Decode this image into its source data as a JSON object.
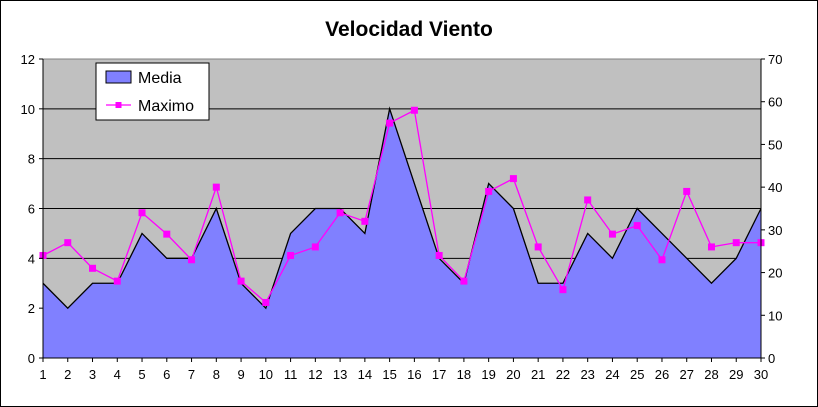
{
  "chart_data": {
    "type": "area",
    "title": "Velocidad Viento",
    "categories": [
      "1",
      "2",
      "3",
      "4",
      "5",
      "6",
      "7",
      "8",
      "9",
      "10",
      "11",
      "12",
      "13",
      "14",
      "15",
      "16",
      "17",
      "18",
      "19",
      "20",
      "21",
      "22",
      "23",
      "24",
      "25",
      "26",
      "27",
      "28",
      "29",
      "30"
    ],
    "y_left": {
      "min": 0,
      "max": 12,
      "ticks": [
        "0",
        "2",
        "4",
        "6",
        "8",
        "10",
        "12"
      ]
    },
    "y_right": {
      "min": 0,
      "max": 70,
      "ticks": [
        "0",
        "10",
        "20",
        "30",
        "40",
        "50",
        "60",
        "70"
      ]
    },
    "grid": true,
    "plot_background": "#c0c0c0",
    "legend": {
      "position": "top-left"
    },
    "series": [
      {
        "name": "Media",
        "type": "area",
        "axis": "left",
        "color": "#8080ff",
        "line_color": "#000000",
        "values": [
          3,
          2,
          3,
          3,
          5,
          4,
          4,
          6,
          3,
          2,
          5,
          6,
          6,
          5,
          10,
          7,
          4,
          3,
          7,
          6,
          3,
          3,
          5,
          4,
          6,
          5,
          4,
          3,
          4,
          6
        ]
      },
      {
        "name": "Maximo",
        "type": "line",
        "axis": "right",
        "color": "#ff00ff",
        "marker": "square",
        "values": [
          24,
          27,
          21,
          18,
          34,
          29,
          23,
          40,
          18,
          13,
          24,
          26,
          34,
          32,
          55,
          58,
          24,
          18,
          39,
          42,
          26,
          16,
          37,
          29,
          31,
          23,
          39,
          26,
          27,
          27
        ]
      }
    ]
  }
}
